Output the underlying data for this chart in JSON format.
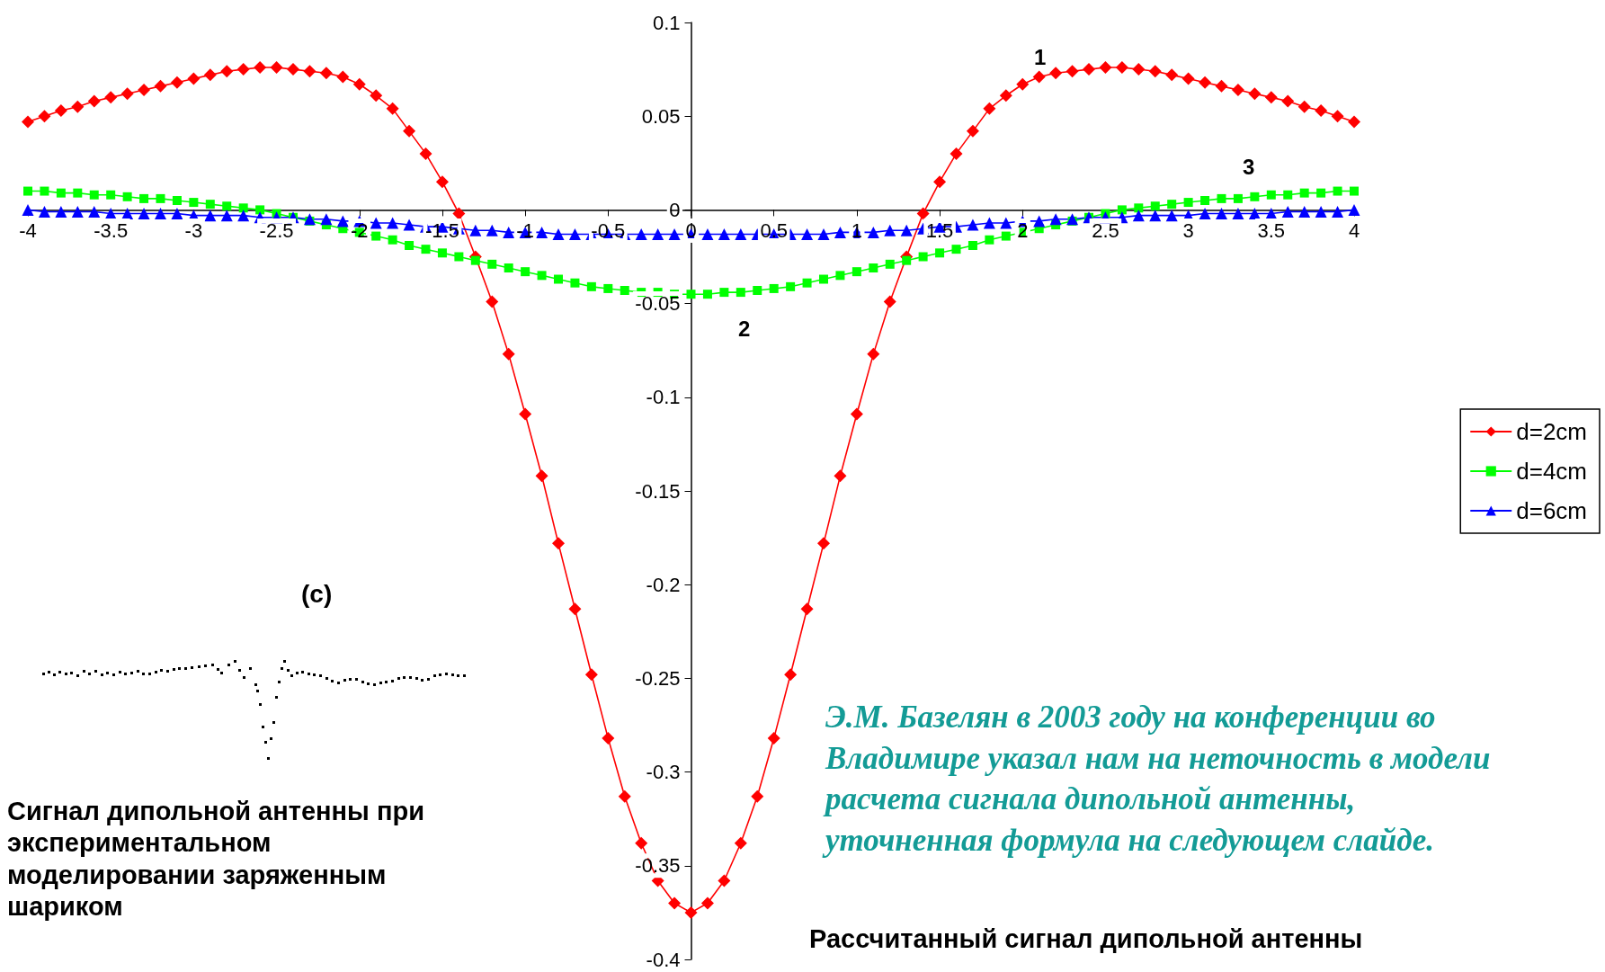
{
  "chart_data": {
    "type": "line",
    "x": [
      -4,
      -3.9,
      -3.8,
      -3.7,
      -3.6,
      -3.5,
      -3.4,
      -3.3,
      -3.2,
      -3.1,
      -3,
      -2.9,
      -2.8,
      -2.7,
      -2.6,
      -2.5,
      -2.4,
      -2.3,
      -2.2,
      -2.1,
      -2,
      -1.9,
      -1.8,
      -1.7,
      -1.6,
      -1.5,
      -1.4,
      -1.3,
      -1.2,
      -1.1,
      -1,
      -0.9,
      -0.8,
      -0.7,
      -0.6,
      -0.5,
      -0.4,
      -0.3,
      -0.2,
      -0.1,
      0,
      0.1,
      0.2,
      0.3,
      0.4,
      0.5,
      0.6,
      0.7,
      0.8,
      0.9,
      1,
      1.1,
      1.2,
      1.3,
      1.4,
      1.5,
      1.6,
      1.7,
      1.8,
      1.9,
      2,
      2.1,
      2.2,
      2.3,
      2.4,
      2.5,
      2.6,
      2.7,
      2.8,
      2.9,
      3,
      3.1,
      3.2,
      3.3,
      3.4,
      3.5,
      3.6,
      3.7,
      3.8,
      3.9,
      4
    ],
    "series": [
      {
        "name": "d=2cm",
        "color": "#ff0000",
        "marker": "diamond",
        "values": [
          0.047,
          0.05,
          0.053,
          0.055,
          0.058,
          0.06,
          0.062,
          0.064,
          0.066,
          0.068,
          0.07,
          0.072,
          0.074,
          0.075,
          0.076,
          0.076,
          0.075,
          0.074,
          0.073,
          0.071,
          0.067,
          0.061,
          0.054,
          0.042,
          0.03,
          0.015,
          -0.002,
          -0.025,
          -0.049,
          -0.077,
          -0.109,
          -0.142,
          -0.178,
          -0.213,
          -0.248,
          -0.282,
          -0.313,
          -0.338,
          -0.358,
          -0.37,
          -0.375,
          -0.37,
          -0.358,
          -0.338,
          -0.313,
          -0.282,
          -0.248,
          -0.213,
          -0.178,
          -0.142,
          -0.109,
          -0.077,
          -0.049,
          -0.025,
          -0.002,
          0.015,
          0.03,
          0.042,
          0.054,
          0.061,
          0.067,
          0.071,
          0.073,
          0.074,
          0.075,
          0.076,
          0.076,
          0.075,
          0.074,
          0.072,
          0.07,
          0.068,
          0.066,
          0.064,
          0.062,
          0.06,
          0.058,
          0.055,
          0.053,
          0.05,
          0.047
        ]
      },
      {
        "name": "d=4cm",
        "color": "#00ff00",
        "marker": "square",
        "values": [
          0.01,
          0.01,
          0.009,
          0.009,
          0.008,
          0.008,
          0.007,
          0.006,
          0.006,
          0.005,
          0.004,
          0.003,
          0.002,
          0.001,
          0.0,
          -0.002,
          -0.004,
          -0.006,
          -0.008,
          -0.01,
          -0.012,
          -0.014,
          -0.016,
          -0.019,
          -0.021,
          -0.023,
          -0.025,
          -0.027,
          -0.029,
          -0.031,
          -0.033,
          -0.035,
          -0.037,
          -0.039,
          -0.041,
          -0.042,
          -0.043,
          -0.044,
          -0.044,
          -0.045,
          -0.045,
          -0.045,
          -0.044,
          -0.044,
          -0.043,
          -0.042,
          -0.041,
          -0.039,
          -0.037,
          -0.035,
          -0.033,
          -0.031,
          -0.029,
          -0.027,
          -0.025,
          -0.023,
          -0.021,
          -0.019,
          -0.016,
          -0.014,
          -0.012,
          -0.01,
          -0.008,
          -0.006,
          -0.004,
          -0.002,
          0.0,
          0.001,
          0.002,
          0.003,
          0.004,
          0.005,
          0.006,
          0.006,
          0.007,
          0.008,
          0.008,
          0.009,
          0.009,
          0.01,
          0.01
        ]
      },
      {
        "name": "d=6cm",
        "color": "#0000ff",
        "marker": "triangle",
        "values": [
          0.0,
          -0.001,
          -0.001,
          -0.001,
          -0.001,
          -0.002,
          -0.002,
          -0.002,
          -0.002,
          -0.002,
          -0.003,
          -0.003,
          -0.003,
          -0.003,
          -0.004,
          -0.004,
          -0.004,
          -0.005,
          -0.005,
          -0.006,
          -0.006,
          -0.007,
          -0.007,
          -0.008,
          -0.009,
          -0.009,
          -0.01,
          -0.011,
          -0.011,
          -0.012,
          -0.012,
          -0.012,
          -0.013,
          -0.013,
          -0.013,
          -0.013,
          -0.013,
          -0.013,
          -0.013,
          -0.013,
          -0.013,
          -0.013,
          -0.013,
          -0.013,
          -0.013,
          -0.013,
          -0.013,
          -0.013,
          -0.013,
          -0.012,
          -0.012,
          -0.012,
          -0.011,
          -0.011,
          -0.01,
          -0.009,
          -0.009,
          -0.008,
          -0.007,
          -0.007,
          -0.006,
          -0.006,
          -0.005,
          -0.005,
          -0.004,
          -0.004,
          -0.004,
          -0.003,
          -0.003,
          -0.003,
          -0.003,
          -0.002,
          -0.002,
          -0.002,
          -0.002,
          -0.002,
          -0.001,
          -0.001,
          -0.001,
          -0.001,
          0.0
        ]
      }
    ],
    "xlim": [
      -4,
      4
    ],
    "xticks": [
      -4,
      -3.5,
      -3,
      -2.5,
      -2,
      -1.5,
      -1,
      -0.5,
      0,
      0.5,
      1,
      1.5,
      2,
      2.5,
      3,
      3.5,
      4
    ],
    "ylim": [
      -0.4,
      0.1
    ],
    "yticks": [
      -0.4,
      -0.35,
      -0.3,
      -0.25,
      -0.2,
      -0.15,
      -0.1,
      -0.05,
      0,
      0.05,
      0.1
    ],
    "legend": "right",
    "line_style": "solid",
    "annotations": [
      "1",
      "2",
      "3",
      "(c)",
      "Э.М. Базелян в 2003 году на конференции  во Владимире указал нам на неточность  в модели расчета сигнала дипольной антенны, уточненная формула на следующем слайде.",
      "Сигнал дипольной антенны при экспериментальном моделировании заряженным шариком",
      "Рассчитанный сигнал дипольной антенны"
    ]
  }
}
